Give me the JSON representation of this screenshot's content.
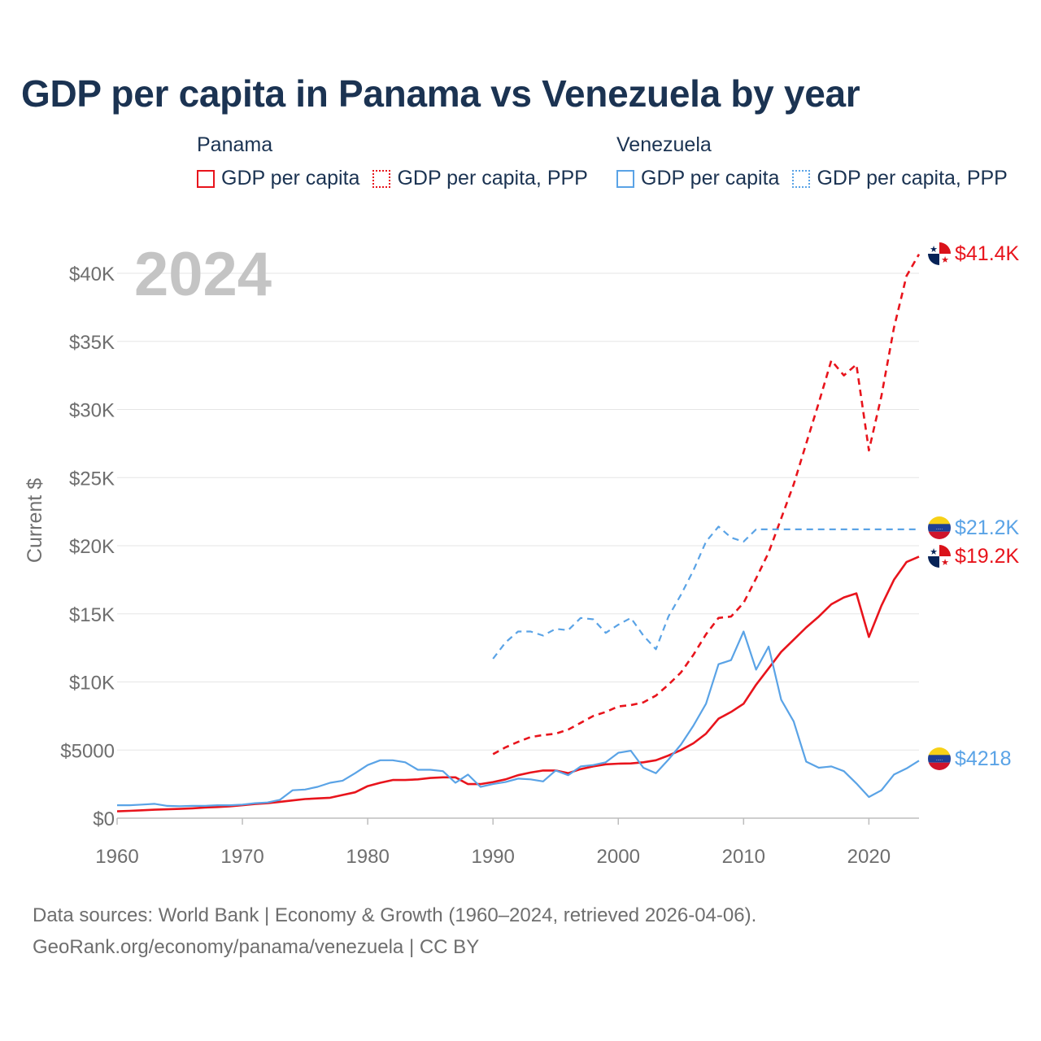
{
  "title": "GDP per capita in Panama vs Venezuela by year",
  "legend": {
    "panama": {
      "name": "Panama",
      "gdp": "GDP per capita",
      "ppp": "GDP per capita, PPP",
      "color": "#e8141c"
    },
    "venezuela": {
      "name": "Venezuela",
      "gdp": "GDP per capita",
      "ppp": "GDP per capita, PPP",
      "color": "#5aa3e6"
    }
  },
  "year_label": "2024",
  "end_labels": {
    "panama_ppp": "$41.4K",
    "venezuela_ppp": "$21.2K",
    "panama_gdp": "$19.2K",
    "venezuela_gdp": "$4218"
  },
  "source": {
    "line1": "Data sources: World Bank | Economy & Growth (1960–2024, retrieved 2026-04-06).",
    "line2": "GeoRank.org/economy/panama/venezuela | CC BY"
  },
  "chart_data": {
    "type": "line",
    "title": "GDP per capita in Panama vs Venezuela by year",
    "xlabel": "",
    "ylabel": "Current $",
    "xlim": [
      1960,
      2024
    ],
    "ylim": [
      0,
      42000
    ],
    "x_ticks": [
      1960,
      1970,
      1980,
      1990,
      2000,
      2010,
      2020
    ],
    "x_tick_labels": [
      "1960",
      "1970",
      "1980",
      "1990",
      "2000",
      "2010",
      "2020"
    ],
    "y_ticks": [
      0,
      5000,
      10000,
      15000,
      20000,
      25000,
      30000,
      35000,
      40000
    ],
    "y_tick_labels": [
      "$0",
      "$5000",
      "$10K",
      "$15K",
      "$20K",
      "$25K",
      "$30K",
      "$35K",
      "$40K"
    ],
    "grid": true,
    "series": [
      {
        "name": "Panama — GDP per capita",
        "country": "Panama",
        "style": "solid",
        "color": "#e8141c",
        "start_year": 1960,
        "values": [
          500,
          540,
          580,
          620,
          650,
          680,
          720,
          780,
          820,
          870,
          950,
          1040,
          1100,
          1200,
          1300,
          1400,
          1450,
          1500,
          1700,
          1900,
          2350,
          2600,
          2800,
          2800,
          2850,
          2950,
          3000,
          3000,
          2500,
          2500,
          2650,
          2850,
          3150,
          3350,
          3500,
          3500,
          3300,
          3600,
          3800,
          3950,
          4000,
          4020,
          4100,
          4250,
          4600,
          5000,
          5500,
          6200,
          7300,
          7800,
          8400,
          9800,
          11000,
          12200,
          13100,
          14000,
          14800,
          15700,
          16200,
          16500,
          13300,
          15600,
          17500,
          18800,
          19200
        ]
      },
      {
        "name": "Panama — GDP per capita, PPP",
        "country": "Panama",
        "style": "dashed",
        "color": "#e8141c",
        "start_year": 1990,
        "values": [
          4700,
          5200,
          5600,
          5950,
          6100,
          6200,
          6500,
          7000,
          7500,
          7800,
          8200,
          8300,
          8500,
          9000,
          9800,
          10700,
          12000,
          13500,
          14700,
          14800,
          15800,
          17600,
          19500,
          22000,
          24500,
          27500,
          30500,
          33600,
          32500,
          33300,
          27000,
          31000,
          36000,
          39800,
          41400
        ]
      },
      {
        "name": "Venezuela — GDP per capita",
        "country": "Venezuela",
        "style": "solid",
        "color": "#5aa3e6",
        "start_year": 1960,
        "values": [
          950,
          950,
          1000,
          1050,
          900,
          880,
          900,
          900,
          950,
          950,
          1000,
          1100,
          1150,
          1350,
          2050,
          2100,
          2300,
          2600,
          2750,
          3300,
          3900,
          4250,
          4250,
          4100,
          3550,
          3550,
          3450,
          2600,
          3200,
          2300,
          2500,
          2650,
          2900,
          2850,
          2700,
          3500,
          3150,
          3800,
          3900,
          4100,
          4800,
          4950,
          3700,
          3300,
          4300,
          5400,
          6800,
          8400,
          11300,
          11600,
          13700,
          10900,
          12600,
          8700,
          7100,
          4150,
          3700,
          3800,
          3450,
          2550,
          1550,
          2050,
          3200,
          3650,
          4218
        ]
      },
      {
        "name": "Venezuela — GDP per capita, PPP",
        "country": "Venezuela",
        "style": "dashed",
        "color": "#5aa3e6",
        "start_year": 1990,
        "values": [
          11700,
          12900,
          13700,
          13700,
          13400,
          13900,
          13800,
          14700,
          14600,
          13600,
          14200,
          14700,
          13400,
          12400,
          14800,
          16400,
          18200,
          20300,
          21400,
          20600,
          20300,
          21200,
          21200,
          21200,
          21200,
          21200,
          21200,
          21200,
          21200,
          21200,
          21200,
          21200,
          21200,
          21200,
          21200
        ]
      }
    ]
  }
}
